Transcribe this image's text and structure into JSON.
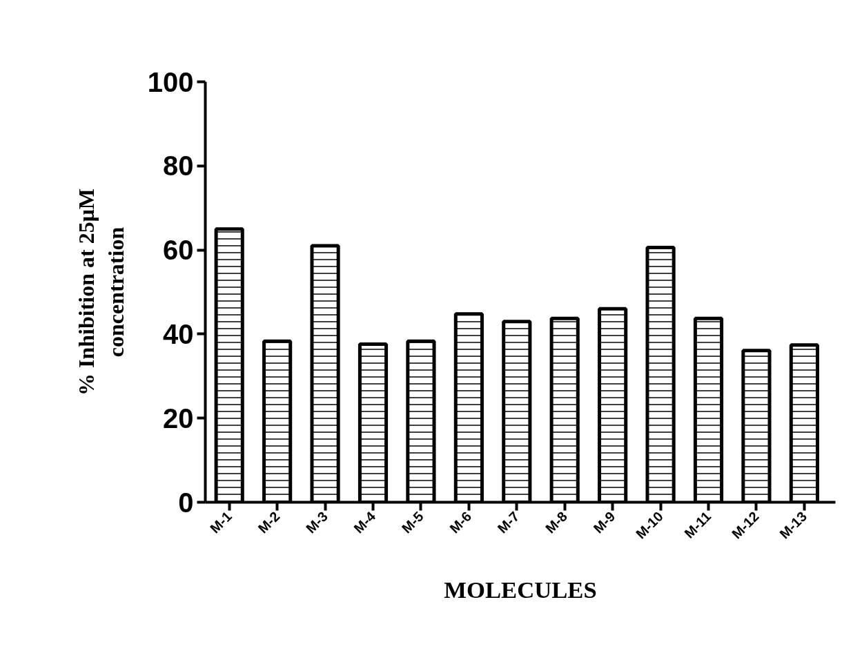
{
  "chart_data": {
    "type": "bar",
    "xlabel": "MOLECULES",
    "ylabel": "% Inhibition at 25μM\nconcentration",
    "categories": [
      "M-1",
      "M-2",
      "M-3",
      "M-4",
      "M-5",
      "M-6",
      "M-7",
      "M-8",
      "M-9",
      "M-10",
      "M-11",
      "M-12",
      "M-13"
    ],
    "values": [
      65,
      38.3,
      61,
      37.6,
      38.3,
      44.8,
      43,
      43.7,
      46,
      60.6,
      43.7,
      36.1,
      37.4
    ],
    "color": "#000000",
    "ylim": [
      0,
      100
    ],
    "yticks": [
      0,
      20,
      40,
      60,
      80,
      100
    ],
    "grid": false
  }
}
